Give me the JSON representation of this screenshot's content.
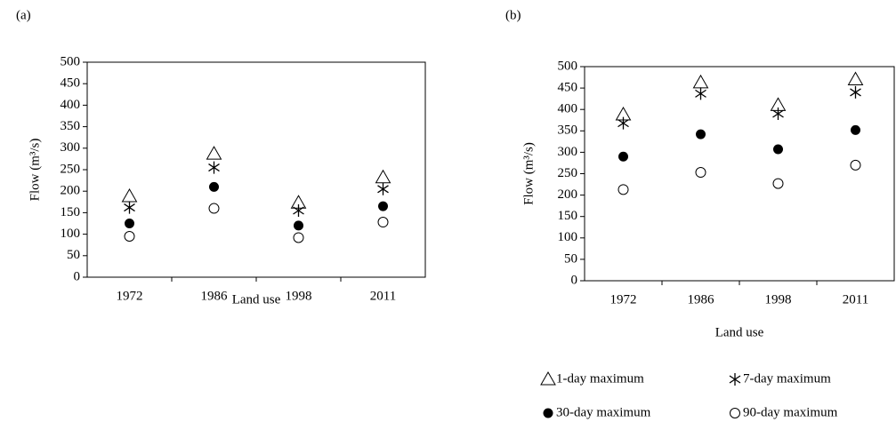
{
  "chart_data": [
    {
      "type": "scatter",
      "label": "(a)",
      "xlabel": "Land use",
      "ylabel": "Flow (m³/s)",
      "categories": [
        "1972",
        "1986",
        "1998",
        "2011"
      ],
      "ylim": [
        0,
        500
      ],
      "yticks": [
        0,
        50,
        100,
        150,
        200,
        250,
        300,
        350,
        400,
        450,
        500
      ],
      "series": [
        {
          "marker": "triangle",
          "color": "#000000",
          "values": [
            188,
            287,
            173,
            232
          ]
        },
        {
          "marker": "star",
          "color": "#000000",
          "values": [
            162,
            255,
            155,
            205
          ]
        },
        {
          "marker": "dot",
          "color": "#000000",
          "values": [
            125,
            210,
            120,
            165
          ]
        },
        {
          "marker": "circle",
          "color": "#000000",
          "values": [
            95,
            160,
            92,
            128
          ]
        }
      ]
    },
    {
      "type": "scatter",
      "label": "(b)",
      "xlabel": "Land use",
      "ylabel": "Flow (m³/s)",
      "categories": [
        "1972",
        "1986",
        "1998",
        "2011"
      ],
      "ylim": [
        0,
        500
      ],
      "yticks": [
        0,
        50,
        100,
        150,
        200,
        250,
        300,
        350,
        400,
        450,
        500
      ],
      "legend": "bottom",
      "series": [
        {
          "name": "1-day maximum",
          "marker": "triangle",
          "color": "#000000",
          "values": [
            388,
            463,
            410,
            470
          ]
        },
        {
          "name": "7-day maximum",
          "marker": "star",
          "color": "#000000",
          "values": [
            368,
            437,
            390,
            440
          ]
        },
        {
          "name": "30-day maximum",
          "marker": "dot",
          "color": "#000000",
          "values": [
            290,
            342,
            307,
            352
          ]
        },
        {
          "name": "90-day maximum",
          "marker": "circle",
          "color": "#000000",
          "values": [
            213,
            253,
            227,
            270
          ]
        }
      ]
    }
  ]
}
